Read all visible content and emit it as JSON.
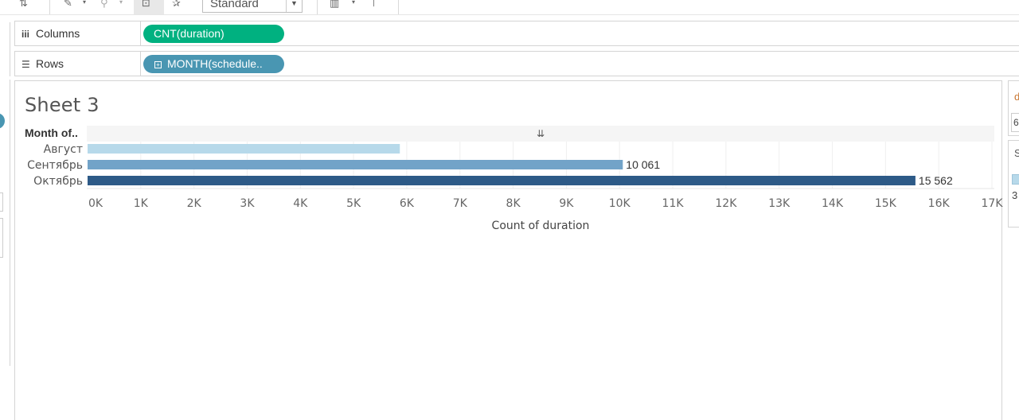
{
  "toolbar": {
    "format_select_value": "Standard"
  },
  "shelves": {
    "columns": {
      "label": "Columns",
      "pill": "CNT(duration)"
    },
    "rows": {
      "label": "Rows",
      "pill": "MONTH(schedule.."
    }
  },
  "sheet": {
    "title": "Sheet 3"
  },
  "right_panel": {
    "filter_initial": "d",
    "filter_input": "6",
    "legend_initial": "S",
    "legend_value": "3"
  },
  "colors": {
    "columns_pill": "#00b180",
    "rows_pill": "#4996b2",
    "bar_august": "#b7d9ea",
    "bar_september": "#72a3c8",
    "bar_october": "#2d5a87"
  },
  "chart_data": {
    "type": "bar",
    "orientation": "horizontal",
    "row_header": "Month of..",
    "categories": [
      "Август",
      "Сентябрь",
      "Октябрь"
    ],
    "values": [
      5870,
      10061,
      15562
    ],
    "data_labels": [
      "",
      "10 061",
      "15 562"
    ],
    "bar_colors": [
      "#b7d9ea",
      "#72a3c8",
      "#2d5a87"
    ],
    "xlabel": "Count of duration",
    "xlim": [
      0,
      17000
    ],
    "xticks": [
      0,
      1000,
      2000,
      3000,
      4000,
      5000,
      6000,
      7000,
      8000,
      9000,
      10000,
      11000,
      12000,
      13000,
      14000,
      15000,
      16000,
      17000
    ],
    "xtick_labels": [
      "0K",
      "1K",
      "2K",
      "3K",
      "4K",
      "5K",
      "6K",
      "7K",
      "8K",
      "9K",
      "10K",
      "11K",
      "12K",
      "13K",
      "14K",
      "15K",
      "16K",
      "17K"
    ],
    "grid": true
  }
}
